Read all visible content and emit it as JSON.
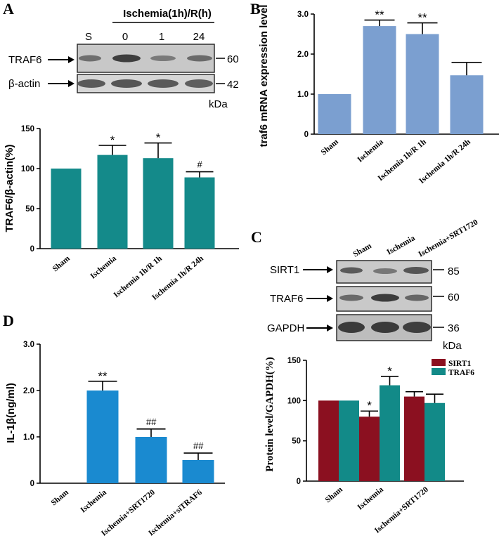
{
  "panels": {
    "A": {
      "letter": "A"
    },
    "B": {
      "letter": "B"
    },
    "C": {
      "letter": "C"
    },
    "D": {
      "letter": "D"
    }
  },
  "blot_A": {
    "header": "Ischemia(1h)/R(h)",
    "lanes": [
      "S",
      "0",
      "1",
      "24"
    ],
    "rows": [
      {
        "label": "TRAF6",
        "mw": "60"
      },
      {
        "label": "β-actin",
        "mw": "42"
      }
    ],
    "unit": "kDa"
  },
  "blot_C": {
    "lanes": [
      "Sham",
      "Ischemia",
      "Ischemia+SRT1720"
    ],
    "rows": [
      {
        "label": "SIRT1",
        "mw": "85"
      },
      {
        "label": "TRAF6",
        "mw": "60"
      },
      {
        "label": "GAPDH",
        "mw": "36"
      }
    ],
    "unit": "kDa"
  },
  "chart_data": [
    {
      "id": "A",
      "type": "bar",
      "ylabel": "TRAF6/β-actin(%)",
      "categories": [
        "Sham",
        "Ischemia",
        "Ischemia 1h/R 1h",
        "Ischemia 1h/R 24h"
      ],
      "values": [
        100,
        117,
        113,
        89
      ],
      "errors": [
        0,
        12,
        19,
        7
      ],
      "annotations": [
        "",
        "*",
        "*",
        "#"
      ],
      "ylim": [
        0,
        150
      ],
      "yticks": [
        0,
        50,
        100,
        150
      ],
      "color": "#148a8a"
    },
    {
      "id": "B",
      "type": "bar",
      "ylabel": "traf6 mRNA expression level",
      "categories": [
        "Sham",
        "Ischemia",
        "Ischemia 1h/R 1h",
        "Ischemia 1h/R 24h"
      ],
      "values": [
        1.0,
        2.7,
        2.5,
        1.47
      ],
      "errors": [
        0,
        0.15,
        0.28,
        0.32
      ],
      "annotations": [
        "",
        "**",
        "**",
        ""
      ],
      "ylim": [
        0,
        3.0
      ],
      "yticks": [
        0,
        1.0,
        2.0,
        3.0
      ],
      "ytick_labels": [
        "0",
        "1.0",
        "2.0",
        "3.0"
      ],
      "color": "#7b9fd0"
    },
    {
      "id": "C",
      "type": "bar",
      "ylabel": "Protein level/GAPDH(%)",
      "categories": [
        "Sham",
        "Ischemia",
        "Ischemia+SRT1720"
      ],
      "series": [
        {
          "name": "SIRT1",
          "values": [
            100,
            80,
            105
          ],
          "errors": [
            0,
            7,
            6
          ],
          "annotations": [
            "",
            "*",
            ""
          ],
          "color": "#8b1020"
        },
        {
          "name": "TRAF6",
          "values": [
            100,
            119,
            97
          ],
          "errors": [
            0,
            11,
            11
          ],
          "annotations": [
            "",
            "*",
            ""
          ],
          "color": "#128a88"
        }
      ],
      "legend": "top-right",
      "ylim": [
        0,
        150
      ],
      "yticks": [
        0,
        50,
        100,
        150
      ]
    },
    {
      "id": "D",
      "type": "bar",
      "ylabel": "IL-1β(ng/ml)",
      "categories": [
        "Sham",
        "Ischemia",
        "Ischemia+SRT1720",
        "Ischemia+siTRAF6"
      ],
      "values": [
        0,
        2.0,
        1.0,
        0.5
      ],
      "errors": [
        0,
        0.2,
        0.17,
        0.15
      ],
      "annotations": [
        "",
        "**",
        "##",
        "##"
      ],
      "ylim": [
        0,
        3.0
      ],
      "yticks": [
        0,
        1.0,
        2.0,
        3.0
      ],
      "ytick_labels": [
        "0",
        "1.0",
        "2.0",
        "3.0"
      ],
      "color": "#1a8ad0"
    }
  ]
}
